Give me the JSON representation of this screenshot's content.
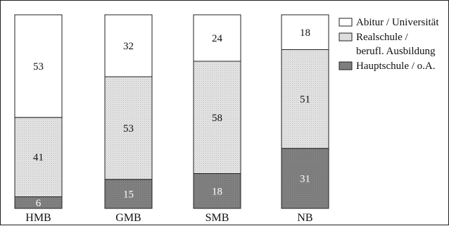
{
  "chart_data": {
    "type": "bar",
    "stacked": true,
    "normalized_to": 100,
    "categories": [
      "HMB",
      "GMB",
      "SMB",
      "NB"
    ],
    "series": [
      {
        "name": "Hauptschule / o.A.",
        "values": [
          6,
          15,
          18,
          31
        ],
        "fill": "#7f7f7f",
        "label_color": "#ffffff"
      },
      {
        "name": "Realschule / berufl. Ausbildung",
        "values": [
          41,
          53,
          58,
          51
        ],
        "fill": "#dcdcdc",
        "label_color": "#111111"
      },
      {
        "name": "Abitur / Universität",
        "values": [
          53,
          32,
          24,
          18
        ],
        "fill": "#ffffff",
        "label_color": "#111111"
      }
    ],
    "legend": {
      "position": "top-right",
      "entries": [
        {
          "lines": [
            "Abitur / Universität"
          ],
          "fill": "#ffffff"
        },
        {
          "lines": [
            "Realschule /",
            "berufl. Ausbildung"
          ],
          "fill": "#dcdcdc"
        },
        {
          "lines": [
            "Hauptschule / o.A."
          ],
          "fill": "#7f7f7f"
        }
      ]
    },
    "title": "",
    "xlabel": "",
    "ylabel": "",
    "ylim": [
      0,
      100
    ],
    "grid": false
  }
}
